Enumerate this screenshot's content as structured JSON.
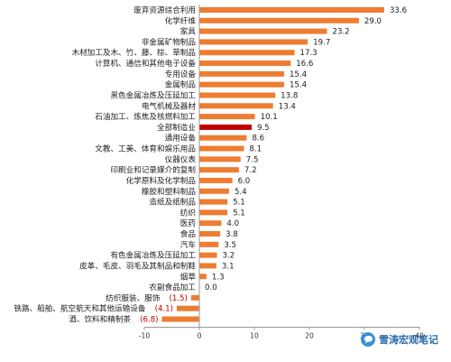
{
  "watermark": {
    "text": "雪涛宏观笔记",
    "icon": "chat-bubble-icon"
  },
  "chart_data": {
    "type": "bar",
    "orientation": "horizontal",
    "title": "",
    "xlabel": "",
    "ylabel": "",
    "xlim": [
      -10,
      40
    ],
    "xticks": [
      -10,
      0,
      10,
      20,
      30,
      40
    ],
    "grid": false,
    "bar_color": "#ED7D31",
    "highlight_color": "#C00000",
    "highlight_category": "全部制造业",
    "categories": [
      "废弃资源综合利用",
      "化学纤维",
      "家具",
      "非金属矿物制品",
      "木材加工及木、竹、藤、棕、草制品",
      "计算机、通信和其他电子设备",
      "专用设备",
      "金属制品",
      "黑色金属冶炼及压延加工",
      "电气机械及器材",
      "石油加工、炼焦及核燃料加工",
      "全部制造业",
      "通用设备",
      "文教、工美、体育和娱乐用品",
      "仪器仪表",
      "印刷业和记录媒介的复制",
      "化学原料及化学制品",
      "橡胶和塑料制品",
      "造纸及纸制品",
      "纺织",
      "医药",
      "食品",
      "汽车",
      "有色金属冶炼及压延加工",
      "皮革、毛皮、羽毛及其制品和制鞋",
      "烟草",
      "农副食品加工",
      "纺织服装、服饰",
      "铁路、船舶、航空航天和其他运输设备",
      "酒、饮料和精制茶"
    ],
    "values": [
      33.6,
      29.0,
      23.2,
      19.7,
      17.3,
      16.6,
      15.4,
      15.4,
      13.8,
      13.4,
      10.1,
      9.5,
      8.6,
      8.1,
      7.5,
      7.2,
      6.0,
      5.4,
      5.1,
      5.1,
      4.0,
      3.8,
      3.5,
      3.2,
      3.1,
      1.3,
      0.0,
      -1.5,
      -4.1,
      -6.8
    ],
    "value_labels": [
      "33.6",
      "29.0",
      "23.2",
      "19.7",
      "17.3",
      "16.6",
      "15.4",
      "15.4",
      "13.8",
      "13.4",
      "10.1",
      "9.5",
      "8.6",
      "8.1",
      "7.5",
      "7.2",
      "6.0",
      "5.4",
      "5.1",
      "5.1",
      "4.0",
      "3.8",
      "3.5",
      "3.2",
      "3.1",
      "1.3",
      "0.0",
      "(1.5)",
      "(4.1)",
      "(6.8)"
    ]
  }
}
